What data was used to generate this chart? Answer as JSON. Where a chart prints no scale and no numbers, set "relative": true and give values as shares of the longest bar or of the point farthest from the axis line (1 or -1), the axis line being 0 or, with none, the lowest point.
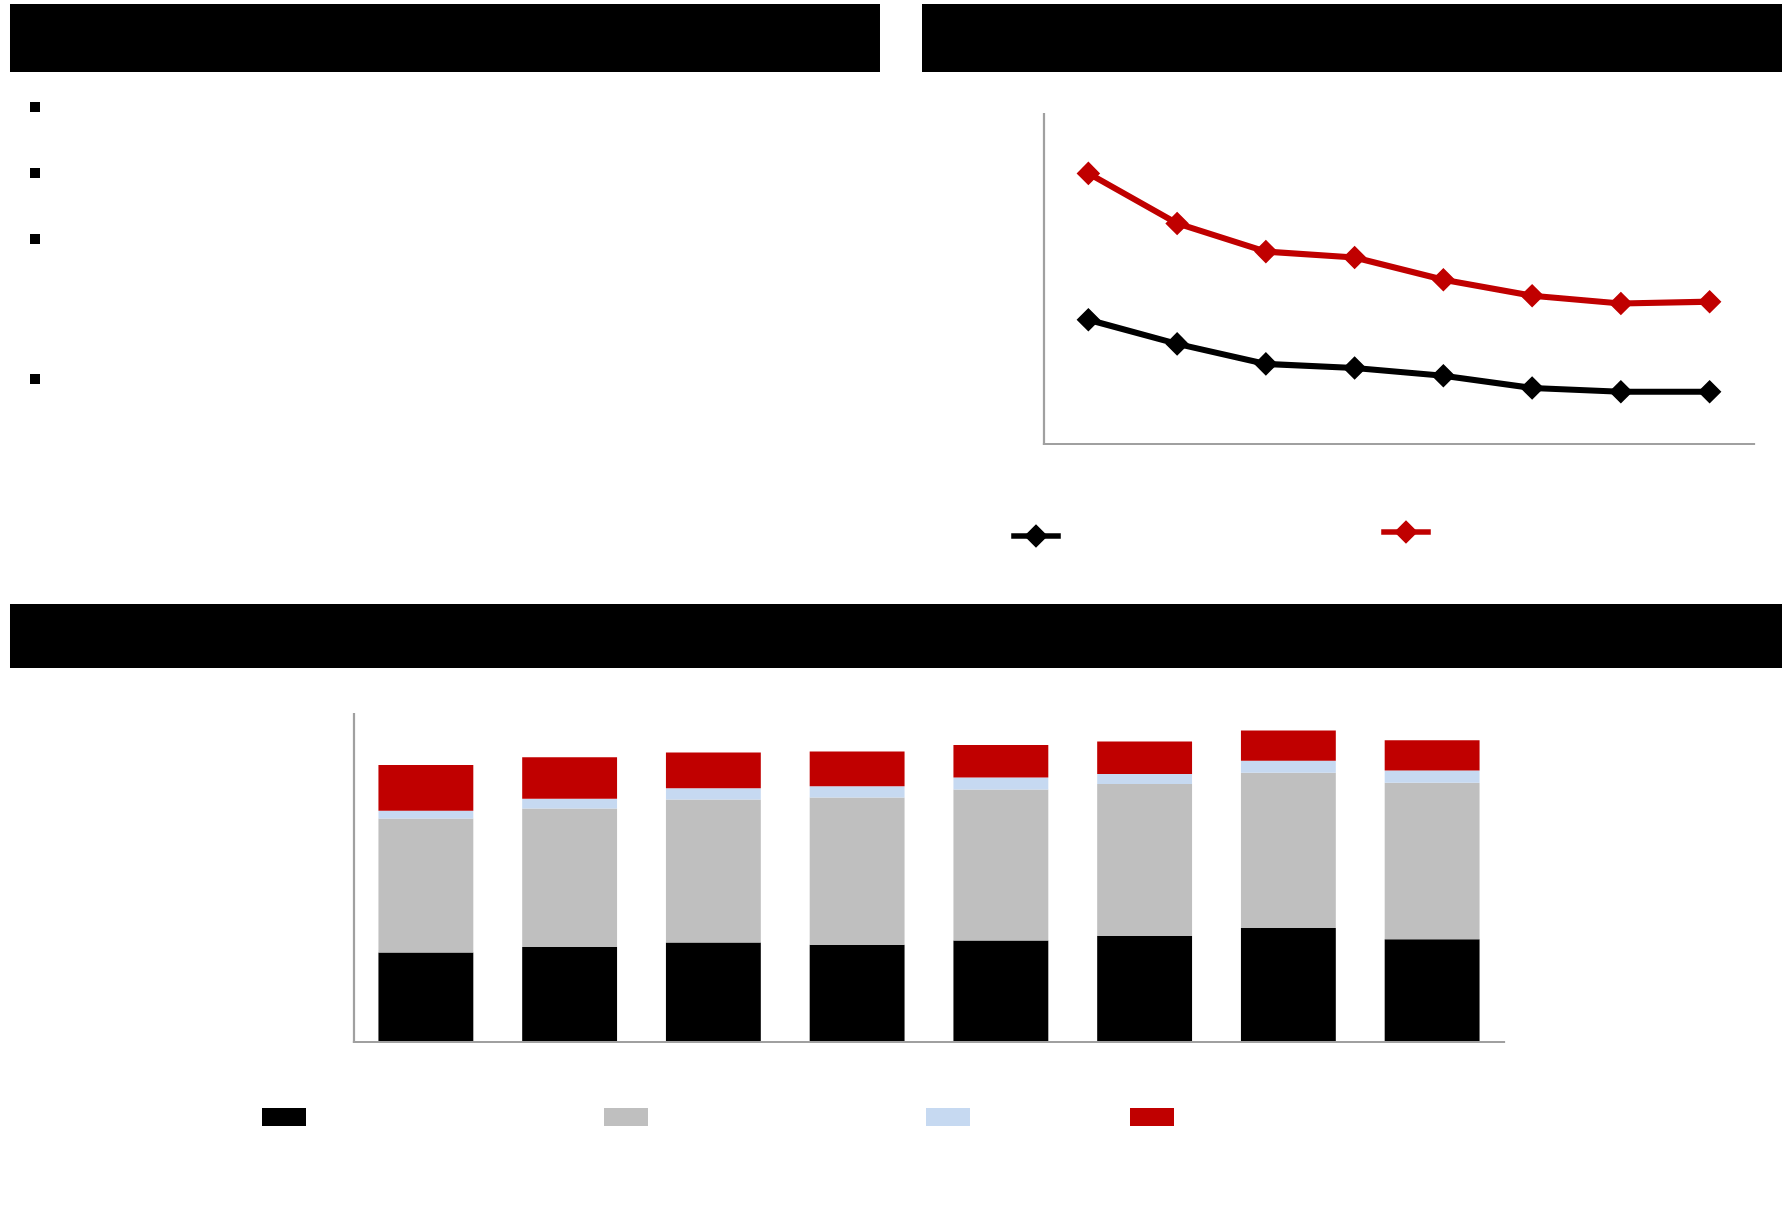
{
  "chart_data": [
    {
      "type": "line",
      "relative": true,
      "categories": [
        null,
        null,
        null,
        null,
        null,
        null,
        null,
        null
      ],
      "marker": "diamond",
      "grid": false,
      "series": [
        {
          "color": "#000000",
          "values": [
            0.459,
            0.37,
            0.296,
            0.281,
            0.252,
            0.207,
            0.193,
            0.193
          ]
        },
        {
          "color": "#c00000",
          "values": [
            1,
            0.815,
            0.711,
            0.689,
            0.607,
            0.548,
            0.519,
            0.526
          ]
        }
      ]
    },
    {
      "type": "bar",
      "relative": true,
      "stacked": true,
      "categories": [
        null,
        null,
        null,
        null,
        null,
        null,
        null,
        null
      ],
      "grid": false,
      "series": [
        {
          "color": "#000000",
          "values": [
            0.287,
            0.305,
            0.319,
            0.312,
            0.326,
            0.341,
            0.366,
            0.33
          ]
        },
        {
          "color": "#bfbfbf",
          "values": [
            0.43,
            0.444,
            0.459,
            0.473,
            0.484,
            0.487,
            0.498,
            0.502
          ]
        },
        {
          "color": "#c6d9f1",
          "values": [
            0.025,
            0.032,
            0.036,
            0.036,
            0.039,
            0.032,
            0.039,
            0.039
          ]
        },
        {
          "color": "#c00000",
          "values": [
            0.147,
            0.133,
            0.115,
            0.111,
            0.104,
            0.104,
            0.097,
            0.097
          ]
        }
      ]
    }
  ]
}
